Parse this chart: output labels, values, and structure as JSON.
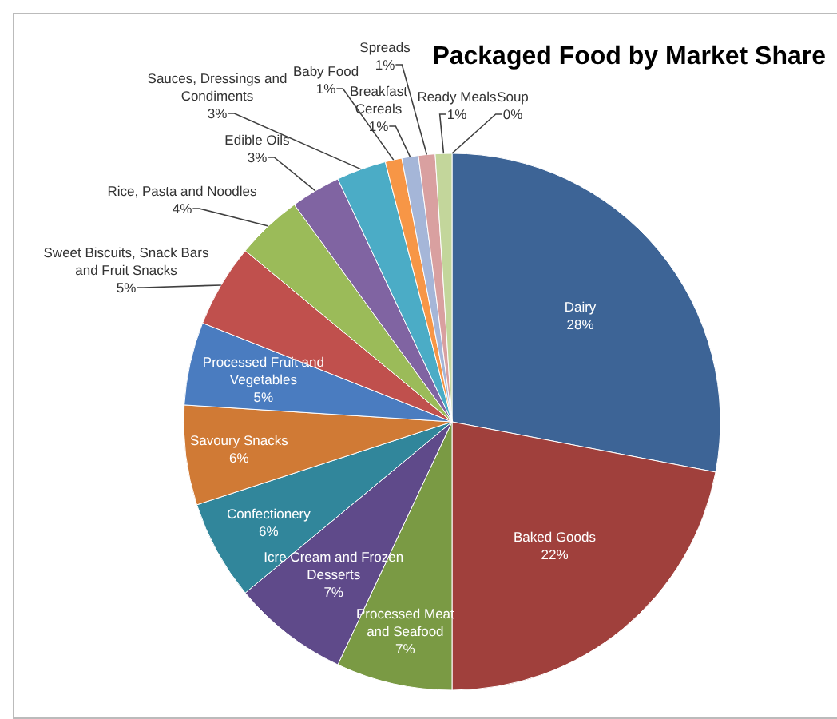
{
  "chart_data": {
    "type": "pie",
    "title": "Packaged Food by Market Share",
    "categories": [
      "Dairy",
      "Baked Goods",
      "Processed Meat and Seafood",
      "Icre Cream and Frozen Desserts",
      "Confectionery",
      "Savoury Snacks",
      "Processed Fruit and Vegetables",
      "Sweet Biscuits, Snack Bars and Fruit Snacks",
      "Rice, Pasta and Noodles",
      "Edible Oils",
      "Sauces, Dressings and Condiments",
      "Baby Food",
      "Breakfast Cereals",
      "Spreads",
      "Ready Meals",
      "Soup"
    ],
    "values": [
      28,
      22,
      7,
      7,
      6,
      6,
      5,
      5,
      4,
      3,
      3,
      1,
      1,
      1,
      1,
      0
    ],
    "value_labels": [
      "28%",
      "22%",
      "7%",
      "7%",
      "6%",
      "6%",
      "5%",
      "5%",
      "4%",
      "3%",
      "3%",
      "1%",
      "1%",
      "1%",
      "1%",
      "0%"
    ],
    "colors": [
      "#3d6496",
      "#a0403c",
      "#7a9a44",
      "#5f4a8a",
      "#31869b",
      "#d07a35",
      "#4a7cc0",
      "#c0504d",
      "#9bbb59",
      "#8064a2",
      "#4bacc6",
      "#f79646",
      "#a5b6d8",
      "#d9a0a0",
      "#c3d69b",
      "#b2a1c7"
    ]
  }
}
